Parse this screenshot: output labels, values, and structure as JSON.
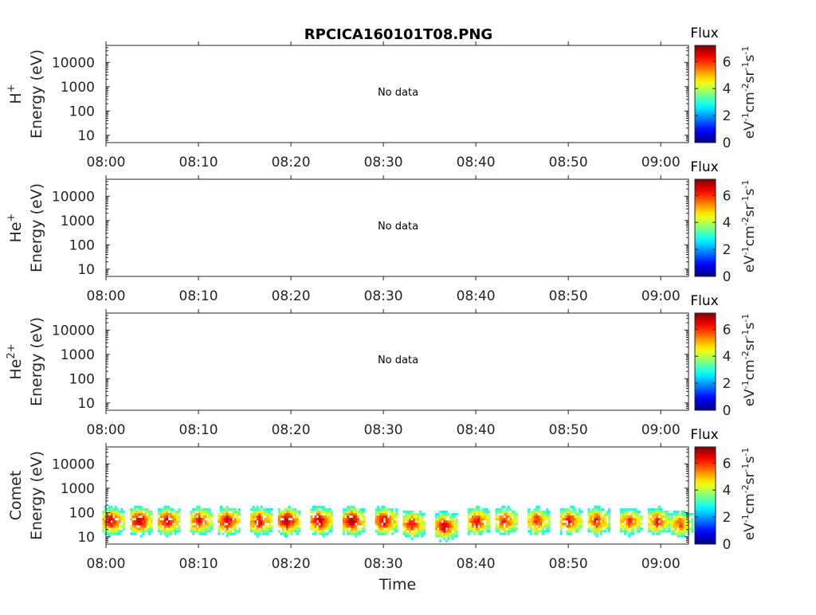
{
  "title": "RPCICA160101T08.PNG",
  "time_axis_label": "Time",
  "colorbar": {
    "title": "Flux",
    "unit_parts": [
      "eV",
      "-1",
      "cm",
      "-2",
      "sr",
      "-1",
      "s",
      "-1"
    ],
    "ticks": [
      0,
      2,
      4,
      6
    ],
    "range": [
      0,
      7.2
    ]
  },
  "no_data_text": "No data",
  "chart_data": [
    {
      "type": "heatmap",
      "ion_base": "H",
      "ion_sup": "+",
      "ylabel": "Energy (eV)",
      "has_data": false,
      "x_ticks": [
        "08:00",
        "08:10",
        "08:20",
        "08:30",
        "08:40",
        "08:50",
        "09:00"
      ],
      "y_ticks": [
        10,
        100,
        1000,
        10000
      ],
      "y_scale": "log",
      "ylim": [
        5,
        50000
      ],
      "xlim": [
        "08:00",
        "09:03"
      ]
    },
    {
      "type": "heatmap",
      "ion_base": "He",
      "ion_sup": "+",
      "ylabel": "Energy (eV)",
      "has_data": false,
      "x_ticks": [
        "08:00",
        "08:10",
        "08:20",
        "08:30",
        "08:40",
        "08:50",
        "09:00"
      ],
      "y_ticks": [
        10,
        100,
        1000,
        10000
      ],
      "y_scale": "log",
      "ylim": [
        5,
        50000
      ],
      "xlim": [
        "08:00",
        "09:03"
      ]
    },
    {
      "type": "heatmap",
      "ion_base": "He",
      "ion_sup": "2+",
      "ylabel": "Energy (eV)",
      "has_data": false,
      "x_ticks": [
        "08:00",
        "08:10",
        "08:20",
        "08:30",
        "08:40",
        "08:50",
        "09:00"
      ],
      "y_ticks": [
        10,
        100,
        1000,
        10000
      ],
      "y_scale": "log",
      "ylim": [
        5,
        50000
      ],
      "xlim": [
        "08:00",
        "09:03"
      ]
    },
    {
      "type": "heatmap",
      "ion_base": "Comet",
      "ion_sup": "",
      "ylabel": "Energy (eV)",
      "has_data": true,
      "x_ticks": [
        "08:00",
        "08:10",
        "08:20",
        "08:30",
        "08:40",
        "08:50",
        "09:00"
      ],
      "y_ticks": [
        10,
        100,
        1000,
        10000
      ],
      "y_scale": "log",
      "ylim": [
        5,
        50000
      ],
      "xlim": [
        "08:00",
        "09:03"
      ],
      "burst_times": [
        "08:00:30",
        "08:03:30",
        "08:06:30",
        "08:10:00",
        "08:13:00",
        "08:16:30",
        "08:19:30",
        "08:23:00",
        "08:26:30",
        "08:30:00",
        "08:33:00",
        "08:36:30",
        "08:40:00",
        "08:43:00",
        "08:46:30",
        "08:50:00",
        "08:53:00",
        "08:56:30",
        "08:59:30",
        "09:02:00"
      ],
      "peak_energy_ev": [
        40,
        40,
        40,
        40,
        40,
        40,
        40,
        40,
        40,
        40,
        30,
        25,
        40,
        40,
        40,
        40,
        40,
        40,
        40,
        30
      ],
      "peak_flux": [
        6.5,
        6.8,
        6.6,
        6.4,
        6.7,
        6.5,
        6.9,
        6.8,
        7.0,
        6.7,
        6.3,
        6.6,
        6.4,
        6.2,
        6.1,
        6.3,
        6.2,
        6.0,
        6.1,
        5.8
      ]
    }
  ]
}
